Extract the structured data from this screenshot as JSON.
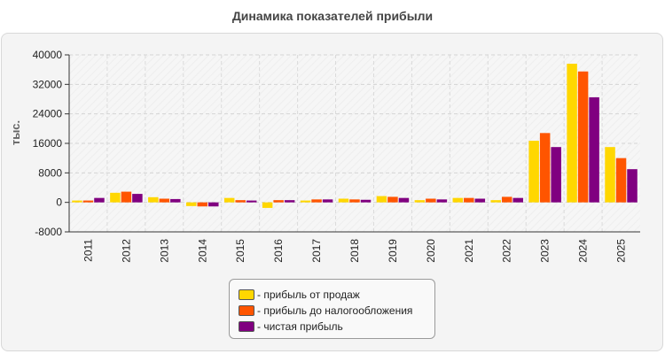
{
  "chart_data": {
    "type": "bar",
    "title": "Динамика показателей прибыли",
    "ylabel": "тыс.",
    "xlabel": "",
    "ylim": [
      -8000,
      40000
    ],
    "yticks": [
      -8000,
      0,
      8000,
      16000,
      24000,
      32000,
      40000
    ],
    "ytick_labels": [
      "-8000",
      "0",
      "8000",
      "16000",
      "24000",
      "32000",
      "40000"
    ],
    "grid": true,
    "legend_position": "bottom-center",
    "categories": [
      "2011",
      "2012",
      "2013",
      "2014",
      "2015",
      "2016",
      "2017",
      "2018",
      "2019",
      "2020",
      "2021",
      "2022",
      "2023",
      "2024",
      "2025"
    ],
    "series": [
      {
        "name": "- прибыль от продаж",
        "color": "#FFD700",
        "values": [
          500,
          2600,
          1400,
          -1000,
          1200,
          -1500,
          500,
          1000,
          1700,
          600,
          1200,
          600,
          16700,
          37600,
          15000
        ]
      },
      {
        "name": "- прибыль до налогообложения",
        "color": "#FF5500",
        "values": [
          500,
          2900,
          1000,
          -1100,
          600,
          600,
          800,
          800,
          1500,
          1000,
          1200,
          1500,
          18800,
          35500,
          12000
        ]
      },
      {
        "name": "- чистая прибыль",
        "color": "#800080",
        "values": [
          1200,
          2300,
          900,
          -1100,
          500,
          600,
          800,
          700,
          1200,
          800,
          1000,
          1200,
          15000,
          28500,
          9000
        ]
      }
    ]
  }
}
